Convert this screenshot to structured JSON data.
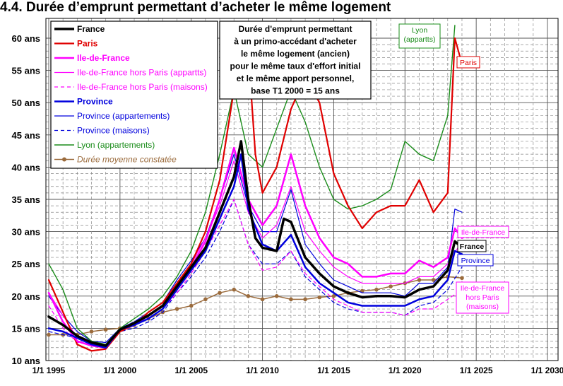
{
  "title": "4.4. Durée d’emprunt permettant d’acheter le même logement",
  "chart_data": {
    "type": "line",
    "title": "4.4. Durée d’emprunt permettant d’acheter le même logement",
    "xlabel": "",
    "ylabel": "",
    "xlim": [
      1995,
      2030
    ],
    "ylim": [
      10,
      60
    ],
    "x_ticks": [
      "1/1 1995",
      "1/1 2000",
      "1/1 2005",
      "1/1 2010",
      "1/1 2015",
      "1/1 2020",
      "1/1 2025",
      "1/1 2030"
    ],
    "y_ticks": [
      "10 ans",
      "15 ans",
      "20 ans",
      "25 ans",
      "30 ans",
      "35 ans",
      "40 ans",
      "45 ans",
      "50 ans",
      "55 ans",
      "60 ans"
    ],
    "grid": true,
    "legend_position": "top-left",
    "annotation": [
      "Durée d'emprunt permettant",
      "à un primo-accédant d'acheter",
      "le même logement (ancien)",
      "pour le même taux d'effort initial",
      "et le même apport personnel,",
      "base T1 2000 = 15 ans"
    ],
    "end_labels": {
      "lyon": [
        "Lyon",
        "(appartts)"
      ],
      "paris": [
        "Paris"
      ],
      "idf": [
        "Ile-de-France"
      ],
      "france": [
        "France"
      ],
      "province": [
        "Province"
      ],
      "idf_maisons": [
        "Ile-de-France",
        "hors Paris",
        "(maisons)"
      ]
    },
    "series": [
      {
        "key": "france",
        "name": "France",
        "color": "#000000",
        "width": 3.5,
        "dash": "",
        "style": "bold",
        "x": [
          1995,
          1996,
          1997,
          1998,
          1999,
          2000,
          2001,
          2002,
          2003,
          2004,
          2005,
          2006,
          2007,
          2008,
          2008.5,
          2009,
          2009.5,
          2010,
          2011,
          2011.5,
          2012,
          2013,
          2014,
          2015,
          2016,
          2017,
          2018,
          2019,
          2020,
          2021,
          2022,
          2023,
          2023.5,
          2024
        ],
        "y": [
          16.8,
          15.5,
          13.8,
          12.8,
          12.3,
          14.8,
          15.8,
          17.0,
          18.5,
          21.5,
          24.5,
          27.5,
          33.0,
          38.5,
          44.0,
          35.0,
          29.0,
          27.5,
          27.0,
          32.0,
          31.5,
          26.0,
          23.5,
          21.5,
          20.5,
          19.8,
          20.0,
          20.0,
          19.8,
          21.0,
          21.5,
          24.0,
          28.5,
          27.5
        ]
      },
      {
        "key": "paris",
        "name": "Paris",
        "color": "#e00000",
        "width": 2.2,
        "dash": "",
        "style": "bold-red",
        "x": [
          1995,
          1996,
          1997,
          1998,
          1999,
          2000,
          2001,
          2002,
          2003,
          2004,
          2005,
          2006,
          2007,
          2008,
          2009,
          2009.5,
          2010,
          2011,
          2012,
          2013,
          2014,
          2015,
          2016,
          2017,
          2018,
          2019,
          2020,
          2021,
          2022,
          2023,
          2023.5,
          2024
        ],
        "y": [
          22.5,
          17.5,
          12.5,
          11.5,
          11.8,
          14.5,
          15.5,
          17.5,
          19.0,
          22.0,
          25.0,
          30.0,
          38.0,
          52.0,
          58.0,
          42.0,
          36.0,
          40.0,
          49.0,
          54.0,
          50.0,
          39.0,
          34.0,
          30.5,
          33.0,
          34.0,
          34.0,
          38.0,
          33.0,
          36.0,
          60.0,
          56.0
        ]
      },
      {
        "key": "idf",
        "name": "Ile-de-France",
        "color": "#ff00ff",
        "width": 2.5,
        "dash": "",
        "style": "bold-magenta",
        "x": [
          1995,
          1996,
          1997,
          1998,
          1999,
          2000,
          2001,
          2002,
          2003,
          2004,
          2005,
          2006,
          2007,
          2008,
          2009,
          2010,
          2011,
          2012,
          2013,
          2014,
          2015,
          2016,
          2017,
          2018,
          2019,
          2020,
          2021,
          2022,
          2023,
          2023.5,
          2024
        ],
        "y": [
          20.5,
          16.0,
          13.0,
          12.3,
          12.0,
          14.8,
          15.5,
          17.0,
          18.5,
          21.5,
          24.5,
          28.5,
          35.0,
          43.0,
          35.0,
          31.0,
          34.0,
          42.0,
          34.0,
          29.0,
          26.0,
          25.0,
          23.0,
          23.0,
          23.5,
          23.5,
          25.5,
          24.5,
          26.0,
          30.5,
          29.0
        ]
      },
      {
        "key": "idf_appart",
        "name": "Ile-de-France hors Paris (appartts)",
        "color": "#ff00ff",
        "width": 1.2,
        "dash": "",
        "style": "normal-magenta",
        "x": [
          1995,
          1996,
          1997,
          1998,
          1999,
          2000,
          2001,
          2002,
          2003,
          2004,
          2005,
          2006,
          2007,
          2008,
          2009,
          2010,
          2011,
          2012,
          2013,
          2014,
          2015,
          2016,
          2017,
          2018,
          2019,
          2020,
          2021,
          2022,
          2023,
          2024
        ],
        "y": [
          20.5,
          17.0,
          13.5,
          12.5,
          12.5,
          14.5,
          15.5,
          17.0,
          18.5,
          22.0,
          25.0,
          29.0,
          34.0,
          41.0,
          33.0,
          29.0,
          31.0,
          37.0,
          30.0,
          27.0,
          24.5,
          23.0,
          22.0,
          22.0,
          22.0,
          22.0,
          23.0,
          23.0,
          25.0,
          28.5
        ]
      },
      {
        "key": "idf_maisons",
        "name": "Ile-de-France hors Paris (maisons)",
        "color": "#ff00ff",
        "width": 1.2,
        "dash": "5,4",
        "style": "dashed-magenta",
        "x": [
          1995,
          1996,
          1997,
          1998,
          1999,
          2000,
          2001,
          2002,
          2003,
          2004,
          2005,
          2006,
          2007,
          2008,
          2009,
          2010,
          2011,
          2012,
          2013,
          2014,
          2015,
          2016,
          2017,
          2018,
          2019,
          2020,
          2021,
          2022,
          2023,
          2024
        ],
        "y": [
          18.5,
          15.0,
          12.8,
          12.5,
          12.3,
          14.5,
          15.5,
          16.5,
          18.0,
          20.5,
          23.5,
          27.0,
          31.0,
          35.0,
          28.0,
          24.0,
          24.5,
          27.0,
          23.5,
          21.5,
          19.5,
          18.5,
          17.5,
          17.5,
          17.5,
          17.0,
          18.0,
          18.0,
          19.5,
          21.0
        ]
      },
      {
        "key": "province",
        "name": "Province",
        "color": "#0000dd",
        "width": 2.5,
        "dash": "",
        "style": "bold-blue",
        "x": [
          1995,
          1996,
          1997,
          1998,
          1999,
          2000,
          2001,
          2002,
          2003,
          2004,
          2005,
          2006,
          2007,
          2008,
          2008.5,
          2009,
          2010,
          2011,
          2012,
          2013,
          2014,
          2015,
          2016,
          2017,
          2018,
          2019,
          2020,
          2021,
          2022,
          2023,
          2023.5,
          2024
        ],
        "y": [
          15.0,
          14.5,
          13.5,
          12.5,
          12.0,
          14.8,
          15.5,
          16.5,
          18.0,
          21.0,
          24.0,
          27.0,
          32.0,
          37.0,
          42.0,
          33.5,
          28.0,
          27.0,
          29.5,
          24.5,
          22.0,
          20.5,
          19.0,
          18.5,
          18.5,
          18.5,
          18.5,
          19.5,
          20.0,
          22.5,
          27.0,
          26.5
        ]
      },
      {
        "key": "province_appart",
        "name": "Province (appartements)",
        "color": "#0000dd",
        "width": 1.2,
        "dash": "",
        "style": "normal-blue",
        "x": [
          1995,
          1996,
          1997,
          1998,
          1999,
          2000,
          2001,
          2002,
          2003,
          2004,
          2005,
          2006,
          2007,
          2008,
          2009,
          2010,
          2011,
          2012,
          2013,
          2014,
          2015,
          2016,
          2017,
          2018,
          2019,
          2020,
          2021,
          2022,
          2023,
          2023.5,
          2024
        ],
        "y": [
          20.0,
          17.0,
          14.5,
          13.0,
          12.8,
          15.0,
          16.0,
          17.5,
          19.0,
          22.5,
          25.5,
          29.0,
          35.0,
          42.0,
          34.0,
          30.0,
          30.0,
          36.5,
          28.0,
          25.0,
          22.5,
          21.5,
          20.5,
          20.5,
          20.5,
          20.0,
          22.0,
          22.0,
          24.5,
          33.5,
          33.0
        ]
      },
      {
        "key": "province_maisons",
        "name": "Province (maisons)",
        "color": "#0000dd",
        "width": 1.2,
        "dash": "5,4",
        "style": "dashed-blue",
        "x": [
          1995,
          1996,
          1997,
          1998,
          1999,
          2000,
          2001,
          2002,
          2003,
          2004,
          2005,
          2006,
          2007,
          2008,
          2009,
          2010,
          2011,
          2012,
          2013,
          2014,
          2015,
          2016,
          2017,
          2018,
          2019,
          2020,
          2021,
          2022,
          2023,
          2024
        ],
        "y": [
          14.5,
          14.0,
          13.5,
          12.5,
          12.0,
          14.5,
          15.0,
          16.0,
          17.5,
          20.5,
          23.0,
          26.0,
          30.0,
          35.0,
          28.0,
          25.0,
          25.0,
          27.0,
          23.0,
          21.0,
          19.0,
          18.0,
          17.5,
          17.5,
          17.5,
          17.0,
          18.5,
          19.0,
          21.0,
          24.5
        ]
      },
      {
        "key": "lyon",
        "name": "Lyon (appartements)",
        "color": "#1a8c1a",
        "width": 1.4,
        "dash": "",
        "style": "normal-green",
        "x": [
          1995,
          1996,
          1997,
          1998,
          1999,
          2000,
          2001,
          2002,
          2003,
          2004,
          2005,
          2006,
          2007,
          2008,
          2009,
          2010,
          2011,
          2012,
          2013,
          2014,
          2015,
          2016,
          2017,
          2018,
          2019,
          2020,
          2021,
          2022,
          2023,
          2023.5
        ],
        "y": [
          25.0,
          21.0,
          15.0,
          13.0,
          12.5,
          15.0,
          16.5,
          18.0,
          20.0,
          23.0,
          27.0,
          33.0,
          42.0,
          52.0,
          42.0,
          40.0,
          46.0,
          52.0,
          47.0,
          40.0,
          35.0,
          33.5,
          34.0,
          35.0,
          36.5,
          44.0,
          42.0,
          41.0,
          48.0,
          62.0
        ]
      },
      {
        "key": "moyenne",
        "name": "Durée moyenne constatée",
        "color": "#9b6b3c",
        "width": 1.5,
        "dash": "",
        "style": "italic-markers",
        "markers": true,
        "x": [
          1995,
          1996,
          1997,
          1998,
          1999,
          2000,
          2001,
          2002,
          2003,
          2004,
          2005,
          2006,
          2007,
          2008,
          2009,
          2010,
          2011,
          2012,
          2013,
          2014,
          2015,
          2016,
          2017,
          2018,
          2019,
          2020,
          2021,
          2022,
          2023,
          2024
        ],
        "y": [
          14.0,
          14.0,
          14.0,
          14.5,
          14.8,
          15.0,
          15.5,
          16.5,
          17.5,
          18.0,
          18.5,
          19.5,
          20.5,
          21.0,
          20.0,
          19.5,
          20.0,
          19.5,
          19.5,
          19.8,
          20.0,
          20.5,
          20.8,
          21.0,
          21.5,
          22.0,
          22.5,
          22.5,
          23.0,
          22.8
        ]
      }
    ]
  }
}
